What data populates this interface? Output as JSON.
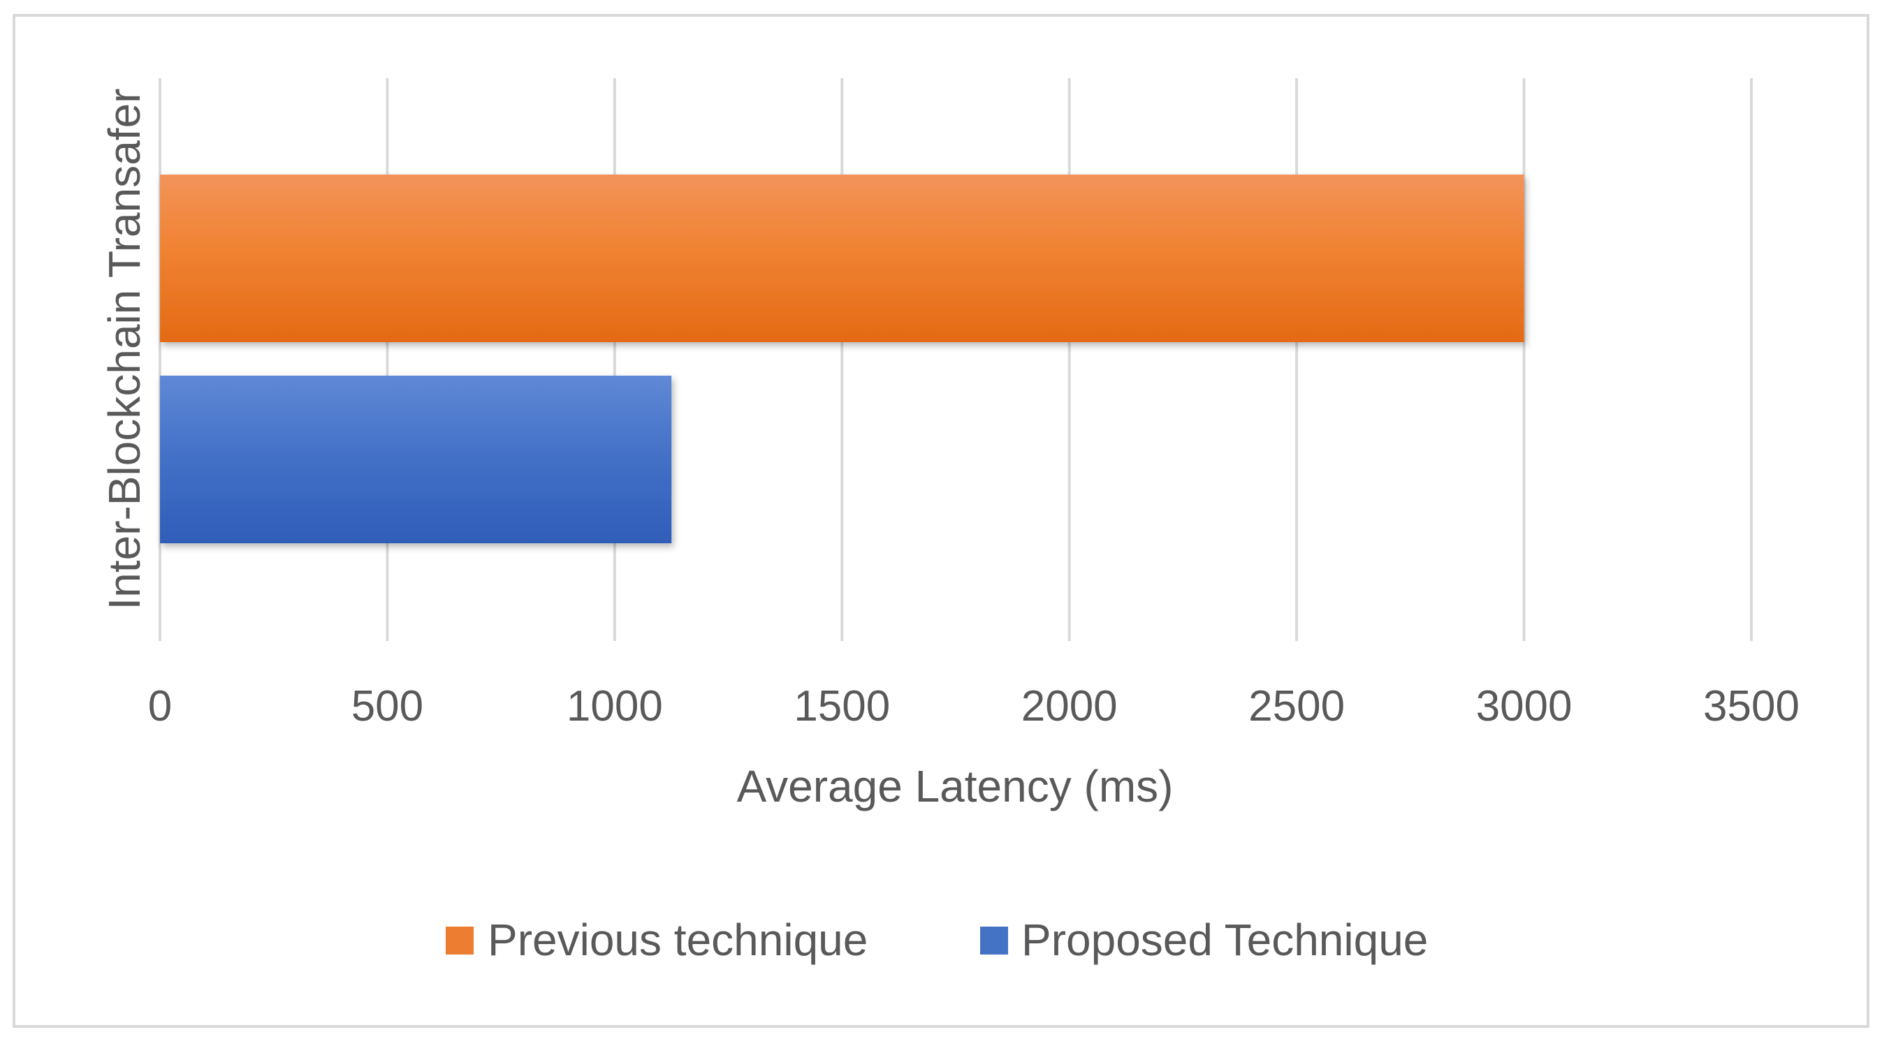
{
  "chart_data": {
    "type": "bar",
    "orientation": "horizontal",
    "title": "",
    "categories": [
      "Inter-Blockchain Transafer"
    ],
    "series": [
      {
        "name": "Previous technique",
        "values": [
          3000
        ],
        "color": "#ED7D31"
      },
      {
        "name": "Proposed Technique",
        "values": [
          1125
        ],
        "color": "#4472C4"
      }
    ],
    "xlabel": "Average Latency (ms)",
    "ylabel": "",
    "xlim": [
      0,
      3500
    ],
    "x_ticks": [
      "0",
      "500",
      "1000",
      "1500",
      "2000",
      "2500",
      "3000",
      "3500"
    ],
    "grid": true,
    "legend_position": "bottom"
  }
}
